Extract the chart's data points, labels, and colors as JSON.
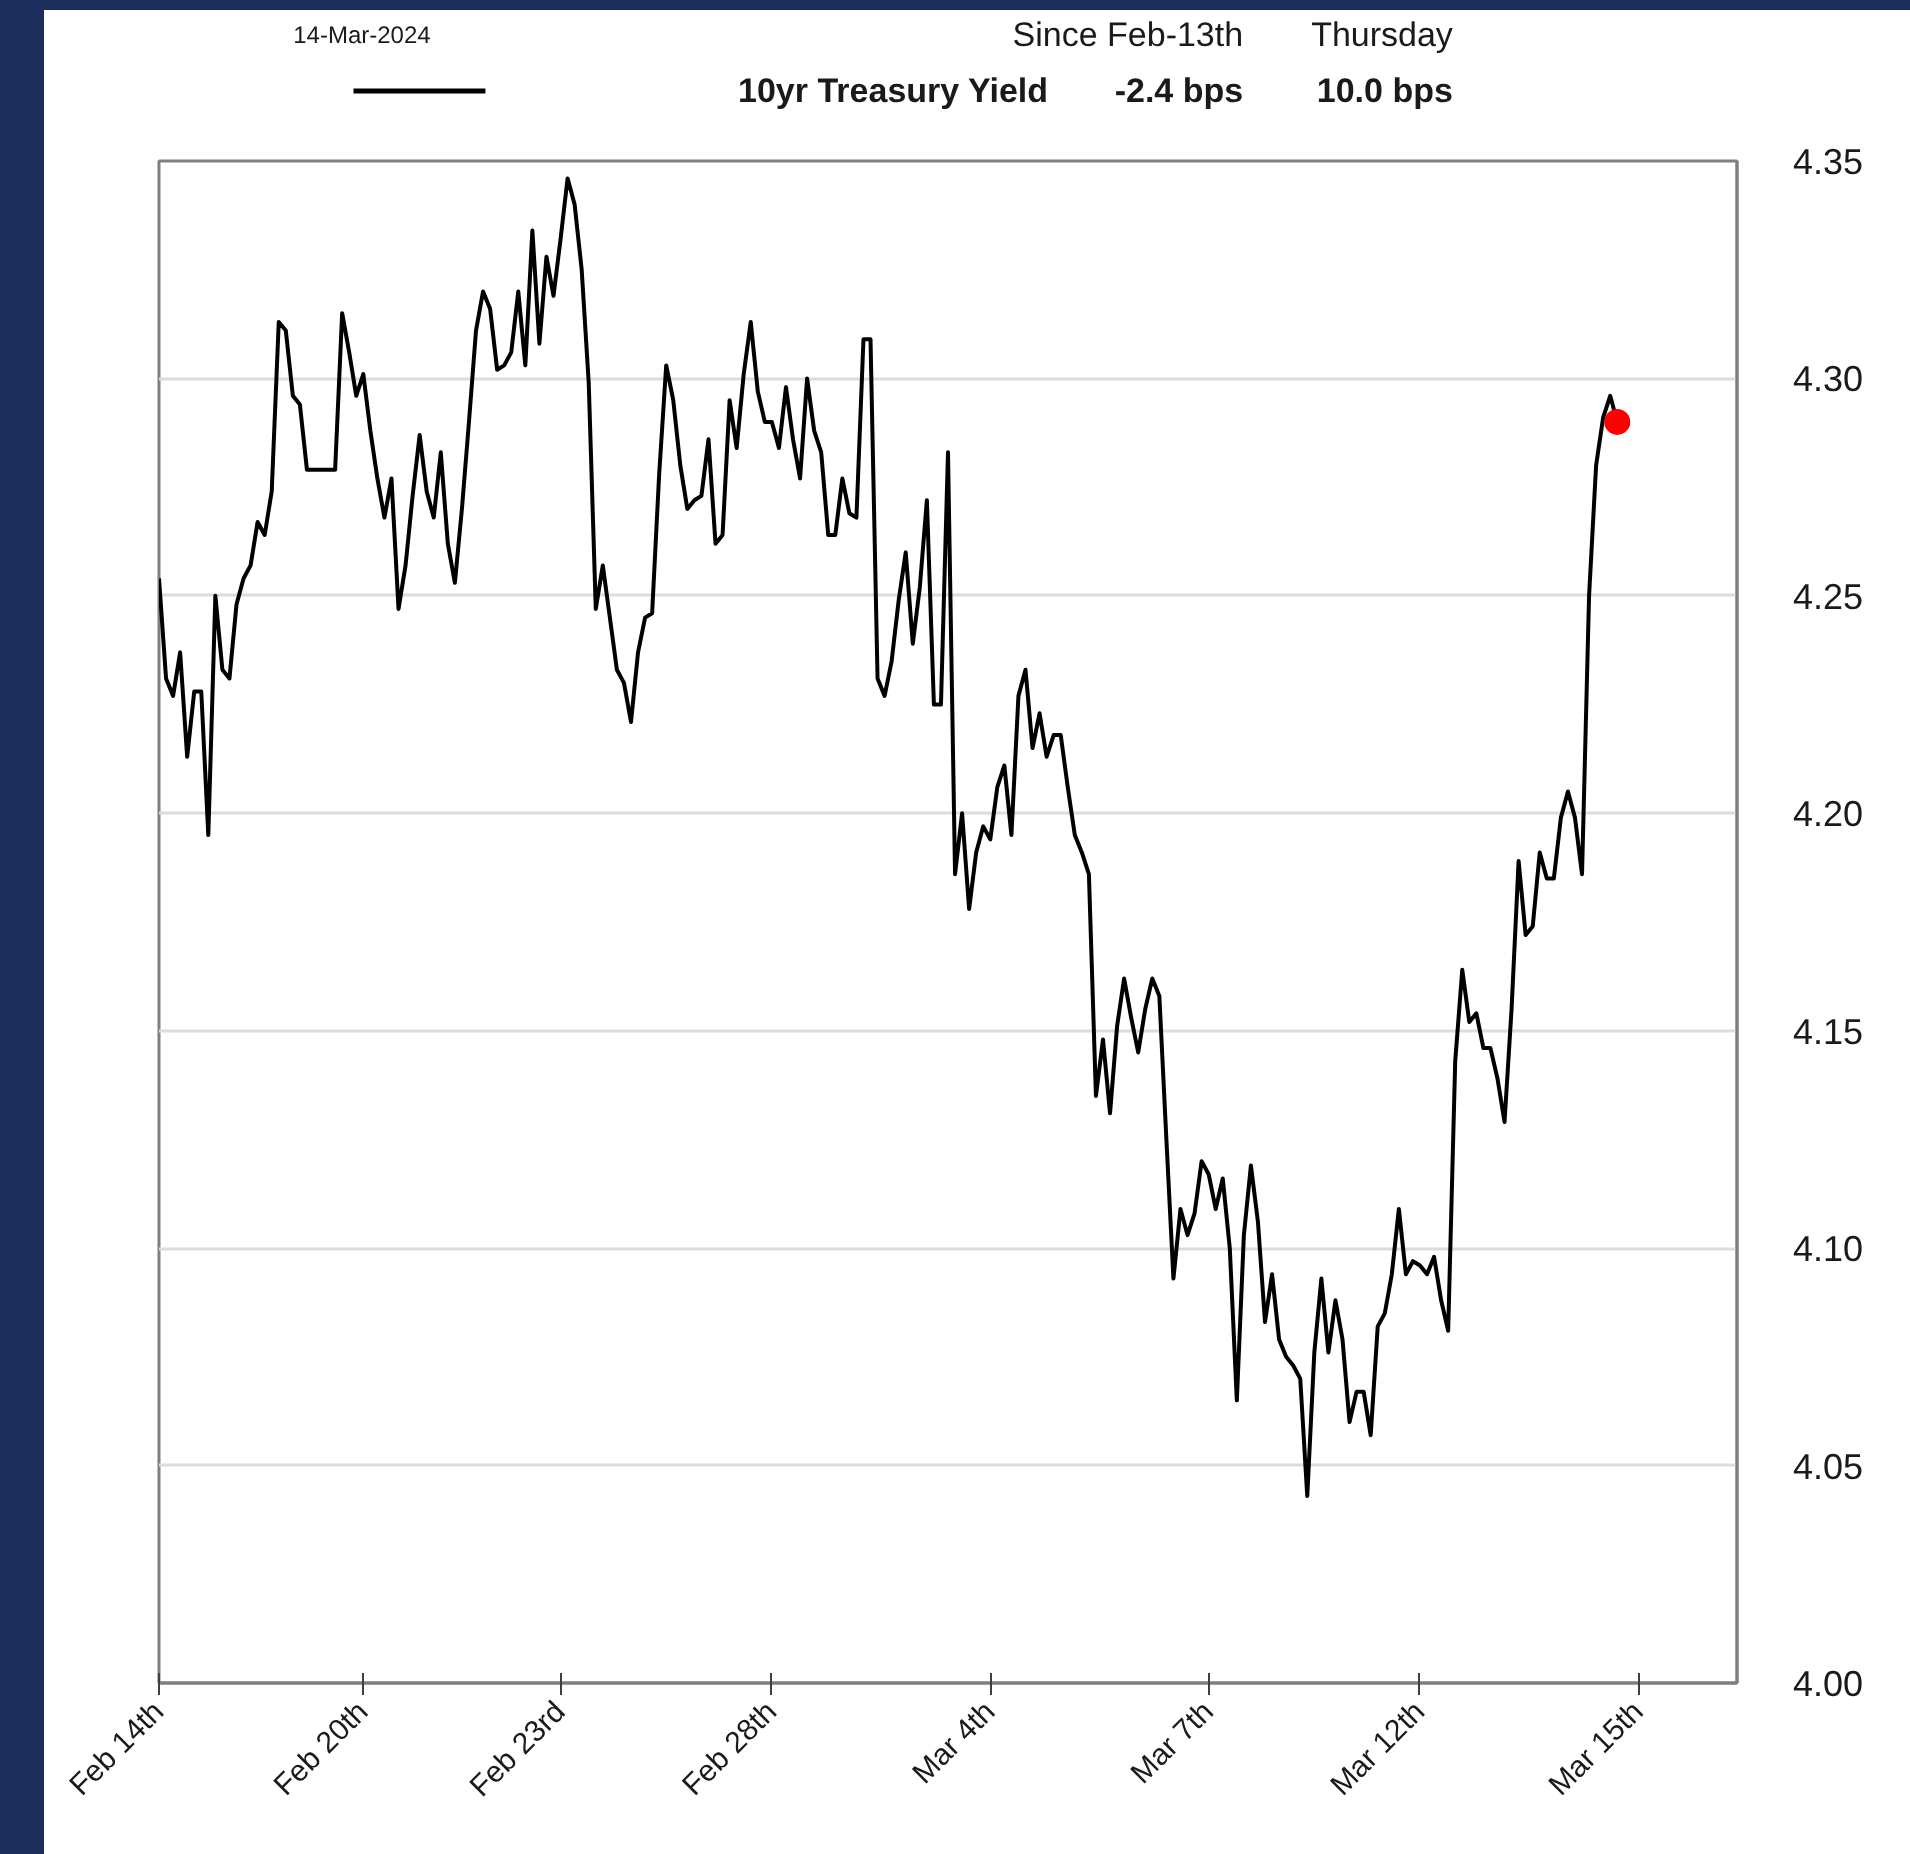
{
  "chart_data": {
    "type": "line",
    "annotations": [
      "14-Mar-2024",
      "Since Feb-13th",
      "Thursday",
      "-2.4 bps",
      "10.0 bps"
    ],
    "categories": [
      "Feb 14th",
      null,
      null,
      null,
      null,
      null,
      null,
      null,
      null,
      null,
      null,
      null,
      null,
      null,
      null,
      null,
      null,
      null,
      null,
      null,
      null,
      null,
      null,
      null,
      null,
      null,
      null,
      null,
      null,
      "Feb 20th",
      null,
      null,
      null,
      null,
      null,
      null,
      null,
      null,
      null,
      null,
      null,
      null,
      null,
      null,
      null,
      null,
      null,
      null,
      null,
      null,
      null,
      null,
      null,
      null,
      null,
      null,
      null,
      "Feb 23rd",
      null,
      null,
      null,
      null,
      null,
      null,
      null,
      null,
      null,
      null,
      null,
      null,
      null,
      null,
      null,
      null,
      null,
      null,
      null,
      null,
      null,
      null,
      null,
      null,
      null,
      null,
      null,
      null,
      null,
      "Feb 28th",
      null,
      null,
      null,
      null,
      null,
      null,
      null,
      null,
      null,
      null,
      null,
      null,
      null,
      null,
      null,
      null,
      null,
      null,
      null,
      null,
      null,
      null,
      null,
      null,
      null,
      null,
      null,
      null,
      null,
      null,
      "Mar 4th",
      null,
      null,
      null,
      null,
      null,
      null,
      null,
      null,
      null,
      null,
      null,
      null,
      null,
      null,
      null,
      null,
      null,
      null,
      null,
      null,
      null,
      null,
      null,
      null,
      null,
      null,
      null,
      null,
      null,
      null,
      "Mar 7th",
      null,
      null,
      null,
      null,
      null,
      null,
      null,
      null,
      null,
      null,
      null,
      null,
      null,
      null,
      null,
      null,
      null,
      null,
      null,
      null,
      null,
      null,
      null,
      null,
      null,
      null,
      null,
      null,
      null,
      "Mar 12th",
      null,
      null,
      null,
      null,
      null,
      null,
      null,
      null,
      null,
      null,
      null,
      null,
      null,
      null,
      null,
      null,
      null,
      null,
      null,
      null,
      null,
      null,
      null,
      null,
      null,
      null,
      null,
      null,
      null,
      null,
      "Mar 15th",
      null,
      null,
      null,
      null,
      null,
      null,
      null,
      null,
      null,
      null,
      null,
      null,
      null,
      null
    ],
    "series": [
      {
        "name": "10yr Treasury Yield",
        "color": "#000000",
        "values": [
          4.254,
          4.231,
          4.227,
          4.237,
          4.213,
          4.228,
          4.228,
          4.195,
          4.25,
          4.233,
          4.231,
          4.248,
          4.254,
          4.257,
          4.267,
          4.264,
          4.274,
          4.313,
          4.311,
          4.296,
          4.294,
          4.279,
          4.279,
          4.279,
          4.279,
          4.279,
          4.315,
          4.306,
          4.296,
          4.301,
          4.288,
          4.277,
          4.268,
          4.277,
          4.247,
          4.257,
          4.273,
          4.287,
          4.274,
          4.268,
          4.283,
          4.262,
          4.253,
          4.27,
          4.29,
          4.311,
          4.32,
          4.316,
          4.302,
          4.303,
          4.306,
          4.32,
          4.303,
          4.334,
          4.308,
          4.328,
          4.319,
          4.332,
          4.346,
          4.34,
          4.325,
          4.299,
          4.247,
          4.257,
          4.245,
          4.233,
          4.23,
          4.221,
          4.237,
          4.245,
          4.246,
          4.278,
          4.303,
          4.295,
          4.28,
          4.27,
          4.272,
          4.273,
          4.286,
          4.262,
          4.264,
          4.295,
          4.284,
          4.301,
          4.313,
          4.297,
          4.29,
          4.29,
          4.284,
          4.298,
          4.286,
          4.277,
          4.3,
          4.288,
          4.283,
          4.264,
          4.264,
          4.277,
          4.269,
          4.268,
          4.309,
          4.309,
          4.231,
          4.227,
          4.235,
          4.249,
          4.26,
          4.239,
          4.252,
          4.272,
          4.225,
          4.225,
          4.283,
          4.186,
          4.2,
          4.178,
          4.191,
          4.197,
          4.194,
          4.206,
          4.211,
          4.195,
          4.227,
          4.233,
          4.215,
          4.223,
          4.213,
          4.218,
          4.218,
          4.206,
          4.195,
          4.191,
          4.186,
          4.135,
          4.148,
          4.131,
          4.151,
          4.162,
          4.153,
          4.145,
          4.155,
          4.162,
          4.158,
          4.125,
          4.093,
          4.109,
          4.103,
          4.108,
          4.12,
          4.117,
          4.109,
          4.116,
          4.1,
          4.065,
          4.103,
          4.119,
          4.106,
          4.083,
          4.094,
          4.079,
          4.075,
          4.073,
          4.07,
          4.043,
          4.076,
          4.093,
          4.076,
          4.088,
          4.079,
          4.06,
          4.067,
          4.067,
          4.057,
          4.082,
          4.085,
          4.094,
          4.109,
          4.094,
          4.097,
          4.096,
          4.094,
          4.098,
          4.088,
          4.081,
          4.143,
          4.164,
          4.152,
          4.154,
          4.146,
          4.146,
          4.139,
          4.129,
          4.155,
          4.189,
          4.172,
          4.174,
          4.191,
          4.185,
          4.185,
          4.199,
          4.205,
          4.199,
          4.186,
          4.25,
          4.28,
          4.291,
          4.296,
          4.29,
          null,
          null,
          null,
          null,
          null,
          null,
          null,
          null,
          null,
          null,
          null,
          null,
          null,
          null,
          null,
          null,
          null
        ]
      },
      {
        "type": "scatter",
        "color": "#ff0000",
        "marker": "circle",
        "values": [
          null,
          null,
          null,
          null,
          null,
          null,
          null,
          null,
          null,
          null,
          null,
          null,
          null,
          null,
          null,
          null,
          null,
          null,
          null,
          null,
          null,
          null,
          null,
          null,
          null,
          null,
          null,
          null,
          null,
          null,
          null,
          null,
          null,
          null,
          null,
          null,
          null,
          null,
          null,
          null,
          null,
          null,
          null,
          null,
          null,
          null,
          null,
          null,
          null,
          null,
          null,
          null,
          null,
          null,
          null,
          null,
          null,
          null,
          null,
          null,
          null,
          null,
          null,
          null,
          null,
          null,
          null,
          null,
          null,
          null,
          null,
          null,
          null,
          null,
          null,
          null,
          null,
          null,
          null,
          null,
          null,
          null,
          null,
          null,
          null,
          null,
          null,
          null,
          null,
          null,
          null,
          null,
          null,
          null,
          null,
          null,
          null,
          null,
          null,
          null,
          null,
          null,
          null,
          null,
          null,
          null,
          null,
          null,
          null,
          null,
          null,
          null,
          null,
          null,
          null,
          null,
          null,
          null,
          null,
          null,
          null,
          null,
          null,
          null,
          null,
          null,
          null,
          null,
          null,
          null,
          null,
          null,
          null,
          null,
          null,
          null,
          null,
          null,
          null,
          null,
          null,
          null,
          null,
          null,
          null,
          null,
          null,
          null,
          null,
          null,
          null,
          null,
          null,
          null,
          null,
          null,
          null,
          null,
          null,
          null,
          null,
          null,
          null,
          null,
          null,
          null,
          null,
          null,
          null,
          null,
          null,
          null,
          null,
          null,
          null,
          null,
          null,
          null,
          null,
          null,
          null,
          null,
          null,
          null,
          null,
          null,
          null,
          null,
          null,
          null,
          null,
          null,
          null,
          null,
          null,
          null,
          null,
          null,
          null,
          null,
          null,
          null,
          null,
          null,
          null,
          null,
          null,
          4.29,
          null,
          null,
          null,
          null,
          null,
          null,
          null,
          null,
          null,
          null,
          null,
          null,
          null,
          null,
          null,
          null,
          null
        ]
      }
    ],
    "ylim": [
      4.0,
      4.35
    ],
    "yticks": [
      {
        "value": 4.0,
        "label": "4.00"
      },
      {
        "value": 4.05,
        "label": "4.05"
      },
      {
        "value": 4.1,
        "label": "4.10"
      },
      {
        "value": 4.15,
        "label": "4.15"
      },
      {
        "value": 4.2,
        "label": "4.20"
      },
      {
        "value": 4.25,
        "label": "4.25"
      },
      {
        "value": 4.3,
        "label": "4.30"
      },
      {
        "value": 4.35,
        "label": "4.35"
      }
    ],
    "grid": "y",
    "legend": "top"
  }
}
